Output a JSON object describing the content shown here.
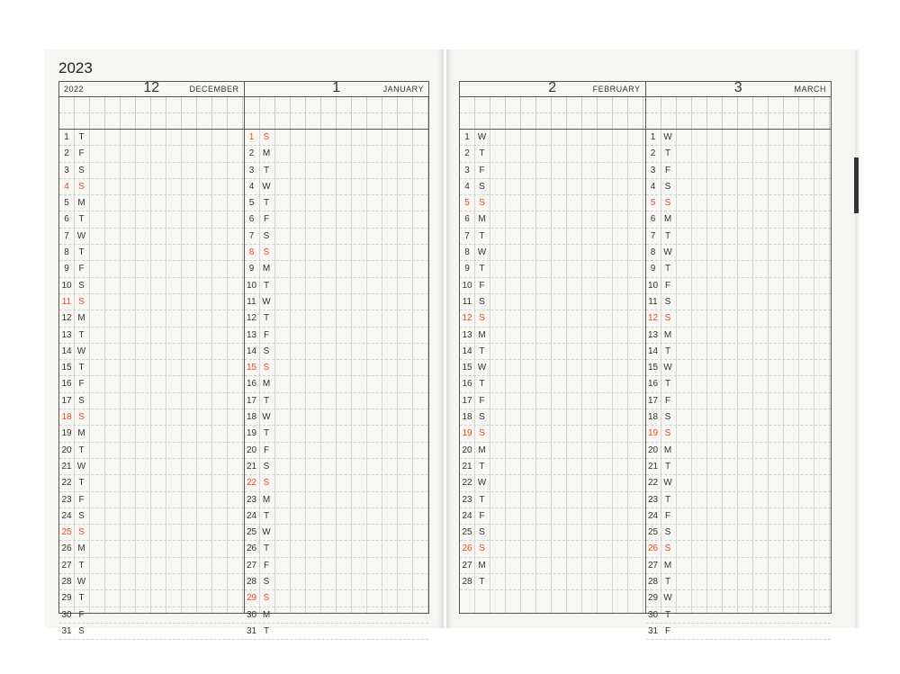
{
  "year_label": "2023",
  "left_table_year": "2022",
  "accent_color": "#e8491d",
  "months": [
    {
      "number": "12",
      "name": "DECEMBER",
      "weekdays": [
        "T",
        "F",
        "S",
        "S",
        "M",
        "T",
        "W",
        "T",
        "F",
        "S",
        "S",
        "M",
        "T",
        "W",
        "T",
        "F",
        "S",
        "S",
        "M",
        "T",
        "W",
        "T",
        "F",
        "S",
        "S",
        "M",
        "T",
        "W",
        "T",
        "F",
        "S"
      ],
      "red_days": [
        4,
        11,
        18,
        25
      ]
    },
    {
      "number": "1",
      "name": "JANUARY",
      "weekdays": [
        "S",
        "M",
        "T",
        "W",
        "T",
        "F",
        "S",
        "S",
        "M",
        "T",
        "W",
        "T",
        "F",
        "S",
        "S",
        "M",
        "T",
        "W",
        "T",
        "F",
        "S",
        "S",
        "M",
        "T",
        "W",
        "T",
        "F",
        "S",
        "S",
        "M",
        "T"
      ],
      "red_days": [
        1,
        8,
        15,
        22,
        29
      ]
    },
    {
      "number": "2",
      "name": "FEBRUARY",
      "weekdays": [
        "W",
        "T",
        "F",
        "S",
        "S",
        "M",
        "T",
        "W",
        "T",
        "F",
        "S",
        "S",
        "M",
        "T",
        "W",
        "T",
        "F",
        "S",
        "S",
        "M",
        "T",
        "W",
        "T",
        "F",
        "S",
        "S",
        "M",
        "T"
      ],
      "red_days": [
        5,
        12,
        19,
        26
      ]
    },
    {
      "number": "3",
      "name": "MARCH",
      "weekdays": [
        "W",
        "T",
        "F",
        "S",
        "S",
        "M",
        "T",
        "W",
        "T",
        "F",
        "S",
        "S",
        "M",
        "T",
        "W",
        "T",
        "F",
        "S",
        "S",
        "M",
        "T",
        "W",
        "T",
        "F",
        "S",
        "S",
        "M",
        "T",
        "W",
        "T",
        "F"
      ],
      "red_days": [
        5,
        12,
        19,
        26
      ]
    }
  ]
}
